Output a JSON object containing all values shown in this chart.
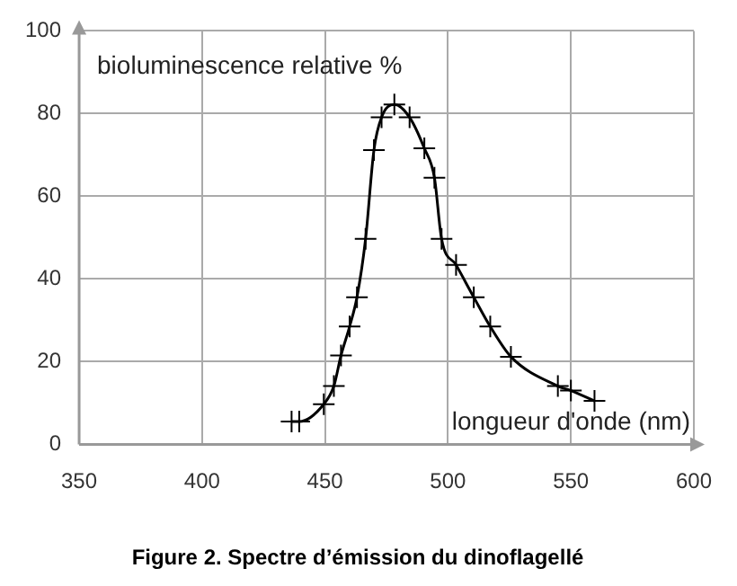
{
  "chart_data": {
    "type": "line",
    "title": "Figure 2. Spectre d’émission du dinoflagellé",
    "xlabel": "longueur d'onde (nm)",
    "ylabel": "bioluminescence relative %",
    "series": [
      {
        "color": "#000000",
        "x": [
          436.4,
          439.5,
          449.5,
          453.6,
          456.5,
          460,
          463,
          466.5,
          469.9,
          473,
          478.2,
          484.4,
          490.4,
          494.5,
          497.4,
          503.3,
          510.5,
          517.2,
          525.6,
          544.7,
          550,
          559.6
        ],
        "values": [
          5.5,
          5.5,
          9.7,
          14.1,
          21.5,
          28.5,
          35.6,
          49.7,
          71.2,
          79.1,
          82.2,
          79.1,
          71.6,
          64.5,
          49.7,
          43.4,
          35.6,
          28.5,
          21.2,
          14.1,
          13,
          10.5
        ]
      }
    ],
    "xlim": [
      350,
      600
    ],
    "xticks": [
      350,
      400,
      450,
      500,
      550,
      600
    ],
    "ylim": [
      0,
      100
    ],
    "yticks": [
      0,
      20,
      40,
      60,
      80,
      100
    ],
    "grid": true,
    "marker": "cross",
    "line_style": "solid",
    "legend": false
  }
}
